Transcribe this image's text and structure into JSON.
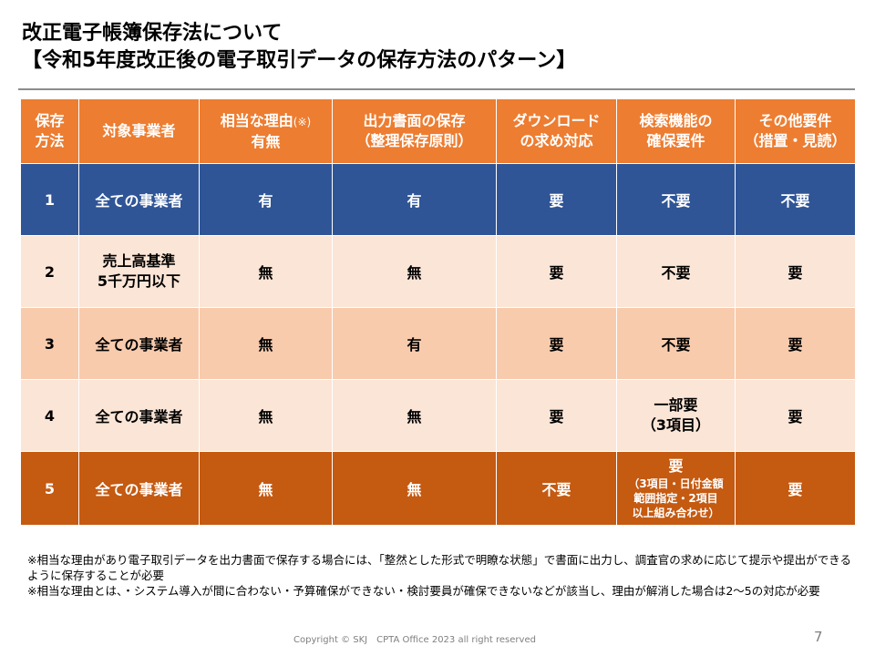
{
  "title": {
    "line1": "改正電子帳簿保存法について",
    "line2": "【令和5年度改正後の電子取引データの保存方法のパターン】"
  },
  "table": {
    "headers": [
      {
        "line1": "保存",
        "line2": "方法"
      },
      {
        "line1": "対象事業者"
      },
      {
        "line1": "相当な理由",
        "note": "(※)",
        "line2": "有無"
      },
      {
        "line1": "出力書面の保存",
        "line2": "（整理保存原則）"
      },
      {
        "line1": "ダウンロード",
        "line2": "の求め対応"
      },
      {
        "line1": "検索機能の",
        "line2": "確保要件"
      },
      {
        "line1": "その他要件",
        "line2": "（措置・見読）"
      }
    ],
    "rows": [
      {
        "no": "1",
        "target": "全ての事業者",
        "reason": "有",
        "paper": "有",
        "download": "要",
        "search": "不要",
        "other": "不要"
      },
      {
        "no": "2",
        "target_line1": "売上高基準",
        "target_line2": "5千万円以下",
        "reason": "無",
        "paper": "無",
        "download": "要",
        "search": "不要",
        "other": "要"
      },
      {
        "no": "3",
        "target": "全ての事業者",
        "reason": "無",
        "paper": "有",
        "download": "要",
        "search": "不要",
        "other": "要"
      },
      {
        "no": "4",
        "target": "全ての事業者",
        "reason": "無",
        "paper": "無",
        "download": "要",
        "search_line1": "一部要",
        "search_line2": "（3項目）",
        "other": "要"
      },
      {
        "no": "5",
        "target": "全ての事業者",
        "reason": "無",
        "paper": "無",
        "download": "不要",
        "search_line1": "要",
        "search_small1": "（3項目・日付金額",
        "search_small2": "範囲指定・2項目",
        "search_small3": "以上組み合わせ）",
        "other": "要"
      }
    ]
  },
  "notes": {
    "note1": "※相当な理由があり電子取引データを出力書面で保存する場合には、「整然とした形式で明瞭な状態」で書面に出力し、調査官の求めに応じて提示や提出ができるように保存することが必要",
    "note2": "※相当な理由とは、・システム導入が間に合わない・予算確保ができない・検討要員が確保できないなどが該当し、理由が解消した場合は2～5の対応が必要"
  },
  "footer": {
    "copyright": "Copyright © SKJ　CPTA Office 2023 all right reserved",
    "page": "7"
  },
  "colors": {
    "header": "#ed7d31",
    "row1": "#2f5597",
    "row_light": "#fbe5d6",
    "row_mid": "#f8cbad",
    "row5": "#c55a11"
  }
}
